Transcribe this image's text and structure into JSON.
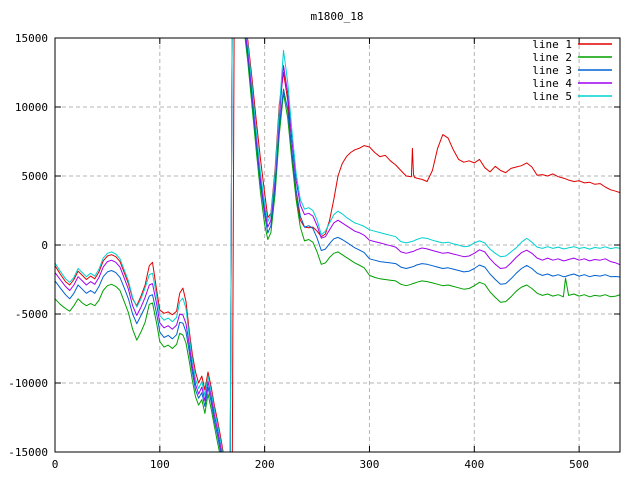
{
  "title": "m1800_18",
  "chart_data": {
    "type": "line",
    "title": "m1800_18",
    "xlabel": "",
    "ylabel": "",
    "xlim": [
      0,
      539
    ],
    "ylim": [
      -15000,
      15000
    ],
    "x_ticks": [
      0,
      100,
      200,
      300,
      400,
      500
    ],
    "y_ticks": [
      -15000,
      -10000,
      -5000,
      0,
      5000,
      10000,
      15000
    ],
    "grid": true,
    "legend_position": "top-right-inside",
    "background": "#ffffff",
    "grid_color": "#b4b4b4",
    "axis_color": "#000000",
    "x": [
      0,
      5,
      10,
      14,
      18,
      22,
      26,
      30,
      34,
      38,
      42,
      46,
      50,
      54,
      58,
      62,
      66,
      70,
      74,
      78,
      82,
      86,
      90,
      93,
      97,
      100,
      104,
      108,
      112,
      116,
      119,
      122,
      125,
      128,
      131,
      134,
      137,
      140,
      143,
      146,
      149,
      152,
      155,
      158,
      161,
      164,
      167,
      169,
      171,
      180,
      184,
      188,
      192,
      196,
      200,
      203,
      206,
      210,
      214,
      218,
      222,
      226,
      230,
      234,
      238,
      242,
      246,
      250,
      254,
      258,
      262,
      266,
      270,
      274,
      278,
      282,
      286,
      290,
      295,
      300,
      305,
      310,
      315,
      320,
      325,
      330,
      335,
      340,
      341,
      342,
      343,
      345,
      350,
      355,
      360,
      365,
      370,
      375,
      380,
      385,
      390,
      395,
      400,
      405,
      410,
      415,
      420,
      425,
      430,
      435,
      440,
      445,
      450,
      455,
      460,
      465,
      470,
      475,
      480,
      485,
      487,
      490,
      495,
      500,
      505,
      510,
      515,
      520,
      525,
      530,
      535,
      539
    ],
    "series": [
      {
        "name": "line 1",
        "color": "#e00000",
        "y": [
          -1500,
          -2100,
          -2650,
          -2900,
          -2500,
          -1900,
          -2200,
          -2500,
          -2250,
          -2450,
          -1950,
          -1150,
          -800,
          -700,
          -850,
          -1200,
          -2000,
          -2800,
          -3900,
          -4400,
          -3700,
          -2900,
          -1500,
          -1250,
          -3300,
          -4700,
          -4950,
          -4850,
          -5050,
          -4800,
          -3500,
          -3120,
          -4100,
          -6200,
          -7900,
          -9200,
          -10000,
          -9500,
          -10500,
          -9200,
          -10300,
          -11600,
          -12700,
          -13900,
          -15300,
          -16500,
          -17200,
          -17200,
          16900,
          16700,
          14800,
          12000,
          9000,
          6200,
          3800,
          2000,
          2300,
          5500,
          10200,
          12500,
          10500,
          6500,
          3500,
          1800,
          1300,
          1250,
          1300,
          1000,
          600,
          800,
          1800,
          3300,
          5000,
          5900,
          6400,
          6700,
          6900,
          7000,
          7200,
          7100,
          6700,
          6400,
          6500,
          6100,
          5800,
          5400,
          5000,
          4950,
          7000,
          5100,
          4900,
          4850,
          4750,
          4600,
          5400,
          7000,
          8000,
          7750,
          6900,
          6200,
          6000,
          6100,
          5950,
          6200,
          5600,
          5300,
          5700,
          5400,
          5250,
          5550,
          5650,
          5750,
          5950,
          5650,
          5050,
          5100,
          5000,
          5150,
          4950,
          4850,
          4800,
          4700,
          4600,
          4650,
          4500,
          4550,
          4400,
          4450,
          4200,
          4000,
          3900,
          3800
        ]
      },
      {
        "name": "line 2",
        "color": "#00a000",
        "y": [
          -3900,
          -4300,
          -4600,
          -4800,
          -4400,
          -3900,
          -4200,
          -4400,
          -4250,
          -4400,
          -4000,
          -3300,
          -2950,
          -2850,
          -3000,
          -3300,
          -4100,
          -4900,
          -6100,
          -6900,
          -6300,
          -5600,
          -4300,
          -4200,
          -5700,
          -7000,
          -7400,
          -7250,
          -7500,
          -7200,
          -6400,
          -6520,
          -7100,
          -8400,
          -9800,
          -11000,
          -11600,
          -11200,
          -12200,
          -10800,
          -11900,
          -13100,
          -14300,
          -15400,
          -16700,
          -17800,
          -18300,
          16400,
          16400,
          15900,
          13200,
          10000,
          6800,
          3800,
          1500,
          400,
          900,
          3700,
          8000,
          11000,
          9200,
          6100,
          3300,
          1300,
          300,
          400,
          200,
          -500,
          -1400,
          -1300,
          -900,
          -600,
          -500,
          -700,
          -900,
          -1100,
          -1300,
          -1450,
          -1650,
          -2200,
          -2350,
          -2450,
          -2500,
          -2550,
          -2600,
          -2850,
          -2950,
          -2850,
          -2800,
          -2780,
          -2760,
          -2700,
          -2600,
          -2650,
          -2750,
          -2850,
          -2950,
          -2900,
          -3000,
          -3100,
          -3200,
          -3150,
          -2950,
          -2700,
          -2850,
          -3400,
          -3800,
          -4150,
          -4100,
          -3750,
          -3350,
          -3050,
          -2900,
          -3150,
          -3500,
          -3650,
          -3550,
          -3700,
          -3600,
          -3750,
          -2400,
          -3650,
          -3550,
          -3700,
          -3600,
          -3750,
          -3650,
          -3700,
          -3600,
          -3750,
          -3700,
          -3600
        ]
      },
      {
        "name": "line 3",
        "color": "#0060d0",
        "y": [
          -2600,
          -3100,
          -3600,
          -3900,
          -3500,
          -2900,
          -3200,
          -3500,
          -3300,
          -3500,
          -3000,
          -2300,
          -1950,
          -1850,
          -2000,
          -2350,
          -3100,
          -3900,
          -5000,
          -5700,
          -5100,
          -4500,
          -3700,
          -3600,
          -5000,
          -6300,
          -6700,
          -6550,
          -6800,
          -6500,
          -5600,
          -5660,
          -6300,
          -7700,
          -9200,
          -10500,
          -11100,
          -10700,
          -11700,
          -10300,
          -11400,
          -12700,
          -13800,
          -15000,
          -16300,
          -17400,
          -18000,
          16600,
          16600,
          16100,
          13700,
          10600,
          7400,
          4400,
          2200,
          870,
          1400,
          4300,
          8600,
          11300,
          9800,
          6800,
          4000,
          2100,
          1300,
          1400,
          1200,
          500,
          -400,
          -300,
          100,
          450,
          550,
          400,
          200,
          0,
          -200,
          -350,
          -550,
          -1000,
          -1100,
          -1200,
          -1250,
          -1300,
          -1350,
          -1600,
          -1700,
          -1600,
          -1580,
          -1560,
          -1530,
          -1450,
          -1350,
          -1400,
          -1500,
          -1600,
          -1700,
          -1650,
          -1750,
          -1850,
          -1950,
          -1900,
          -1700,
          -1450,
          -1600,
          -2100,
          -2500,
          -2850,
          -2800,
          -2450,
          -2050,
          -1700,
          -1480,
          -1700,
          -2050,
          -2200,
          -2100,
          -2250,
          -2150,
          -2300,
          -2280,
          -2200,
          -2100,
          -2250,
          -2150,
          -2300,
          -2200,
          -2250,
          -2150,
          -2300,
          -2280,
          -2320
        ]
      },
      {
        "name": "line 4",
        "color": "#a000f0",
        "y": [
          -2000,
          -2500,
          -3000,
          -3300,
          -2900,
          -2300,
          -2600,
          -2900,
          -2650,
          -2850,
          -2350,
          -1600,
          -1200,
          -1100,
          -1250,
          -1600,
          -2400,
          -3200,
          -4400,
          -5100,
          -4500,
          -3800,
          -2900,
          -2800,
          -4300,
          -5650,
          -6000,
          -5850,
          -6100,
          -5800,
          -5000,
          -5075,
          -5700,
          -7200,
          -8800,
          -10100,
          -10800,
          -10300,
          -11300,
          -9900,
          -11000,
          -12300,
          -13400,
          -14600,
          -16000,
          -17100,
          -17800,
          16800,
          16800,
          16300,
          14000,
          11000,
          7800,
          4800,
          2600,
          1300,
          1800,
          4800,
          9200,
          13000,
          11000,
          7600,
          4700,
          2900,
          2200,
          2300,
          2100,
          1400,
          500,
          600,
          1100,
          1600,
          1800,
          1600,
          1400,
          1200,
          1000,
          900,
          700,
          350,
          250,
          150,
          50,
          -50,
          -150,
          -500,
          -600,
          -500,
          -480,
          -460,
          -420,
          -350,
          -220,
          -280,
          -400,
          -500,
          -600,
          -550,
          -650,
          -750,
          -850,
          -800,
          -600,
          -350,
          -500,
          -1000,
          -1400,
          -1700,
          -1650,
          -1300,
          -900,
          -550,
          -380,
          -600,
          -950,
          -1100,
          -950,
          -1100,
          -1000,
          -1150,
          -1120,
          -1050,
          -950,
          -1100,
          -1000,
          -1150,
          -1050,
          -1100,
          -1000,
          -1200,
          -1300,
          -1430
        ]
      },
      {
        "name": "line 5",
        "color": "#00d0d0",
        "y": [
          -1300,
          -1900,
          -2450,
          -2700,
          -2350,
          -1700,
          -2000,
          -2300,
          -2050,
          -2250,
          -1750,
          -950,
          -600,
          -500,
          -650,
          -1000,
          -1800,
          -2600,
          -3800,
          -4500,
          -3900,
          -3100,
          -2150,
          -2050,
          -3700,
          -5100,
          -5450,
          -5300,
          -5550,
          -5250,
          -4100,
          -3850,
          -4600,
          -6600,
          -8300,
          -9700,
          -10400,
          -9900,
          -10900,
          -9500,
          -10600,
          -11900,
          -13000,
          -14200,
          -15600,
          -16800,
          -17500,
          17000,
          17000,
          16500,
          14500,
          11500,
          8200,
          5200,
          3000,
          1700,
          2200,
          5200,
          9800,
          14100,
          11800,
          8300,
          5200,
          3300,
          2600,
          2700,
          2500,
          1800,
          750,
          1000,
          1600,
          2200,
          2450,
          2250,
          2000,
          1800,
          1600,
          1500,
          1350,
          1100,
          1000,
          900,
          800,
          700,
          600,
          250,
          150,
          250,
          270,
          290,
          320,
          400,
          520,
          480,
          350,
          250,
          150,
          200,
          80,
          0,
          -120,
          -80,
          150,
          300,
          150,
          -300,
          -600,
          -850,
          -800,
          -500,
          -200,
          200,
          480,
          200,
          -150,
          -250,
          -120,
          -250,
          -150,
          -280,
          -260,
          -200,
          -120,
          -250,
          -180,
          -300,
          -180,
          -240,
          -130,
          -260,
          -190,
          -230
        ]
      }
    ]
  }
}
